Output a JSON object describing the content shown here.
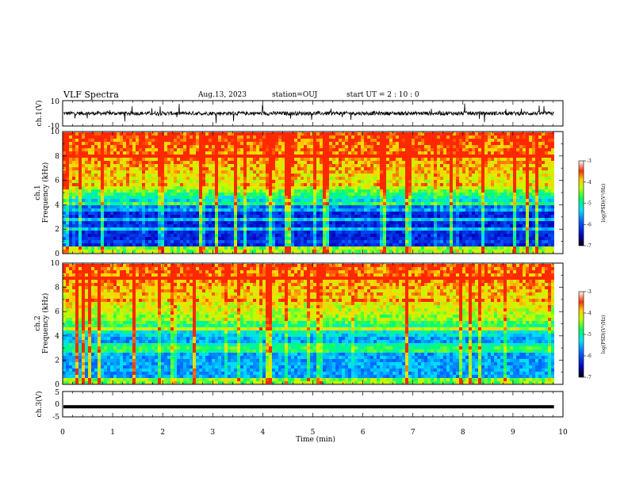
{
  "header": {
    "title": "VLF Spectra",
    "date": "Aug.13, 2023",
    "station": "station=OUJ",
    "start": "start  UT  =   2  : 10 : 0"
  },
  "chart_data": [
    {
      "type": "line",
      "name": "ch1-waveform",
      "ylabel": "ch.1(V)",
      "ylim": [
        -10,
        10
      ],
      "y_tick_labels": [
        "10",
        "-10"
      ],
      "baseline": 0
    },
    {
      "type": "heatmap",
      "name": "ch1-spectrogram",
      "ylabel_line1": "ch.1",
      "ylabel_line2": "Frequency  (kHz)",
      "ylim": [
        0,
        10
      ],
      "y_tick_labels": [
        "0",
        "2",
        "4",
        "6",
        "8",
        "10"
      ],
      "colorbar": {
        "label": "log(PSD)(V²/Hz)",
        "range": [
          -7,
          -3
        ],
        "tick_labels": [
          "-3",
          "-4",
          "-5",
          "-6",
          "-7"
        ]
      },
      "description": "Broadband emission concentrated above ~5 kHz; low intensity 0-5 kHz with narrowband lines"
    },
    {
      "type": "heatmap",
      "name": "ch2-spectrogram",
      "ylabel_line1": "ch.2",
      "ylabel_line2": "Frequency  (kHz)",
      "ylim": [
        0,
        10
      ],
      "y_tick_labels": [
        "0",
        "2",
        "4",
        "6",
        "8",
        "10"
      ],
      "colorbar": {
        "label": "log(PSD)(V²/Hz)",
        "range": [
          -7,
          -3
        ],
        "tick_labels": [
          "-3",
          "-4",
          "-5",
          "-6",
          "-7"
        ]
      }
    },
    {
      "type": "line",
      "name": "ch3-signal",
      "ylabel": "ch.3(V)",
      "ylim": [
        -5,
        5
      ],
      "y_tick_labels": [
        "5",
        "0",
        "-5"
      ],
      "constant_value": -1
    }
  ],
  "x_axis": {
    "label": "Time  (min)",
    "range": [
      0,
      10
    ],
    "tick_labels": [
      "0",
      "1",
      "2",
      "3",
      "4",
      "5",
      "6",
      "7",
      "8",
      "9",
      "10"
    ],
    "data_end": 9.82
  },
  "colors": {
    "axis": "#000000",
    "colormap": [
      "#000040",
      "#0000c8",
      "#0050ff",
      "#00c8ff",
      "#00ff90",
      "#80ff00",
      "#ffff00",
      "#ff8000",
      "#ff0000",
      "#ffffff"
    ]
  }
}
